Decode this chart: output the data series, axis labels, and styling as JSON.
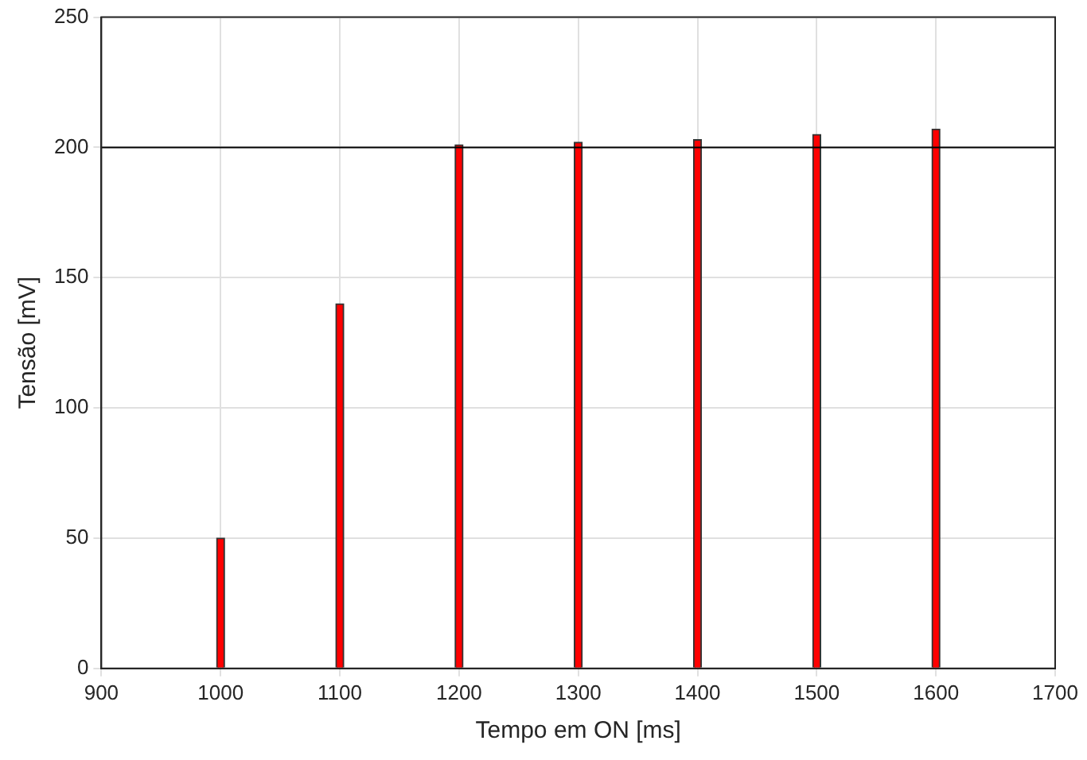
{
  "chart_data": {
    "type": "bar",
    "xlabel": "Tempo em ON [ms]",
    "ylabel": "Tensão [mV]",
    "x": [
      1000,
      1100,
      1200,
      1300,
      1400,
      1500,
      1600
    ],
    "values": [
      50,
      140,
      201,
      202,
      203,
      205,
      207
    ],
    "color": "#ff0000",
    "xlim": [
      900,
      1700
    ],
    "xticks": [
      900,
      1000,
      1100,
      1200,
      1300,
      1400,
      1500,
      1600,
      1700
    ],
    "ylim": [
      0,
      250
    ],
    "yticks": [
      0,
      50,
      100,
      150,
      200,
      250
    ],
    "ref_lines": [
      {
        "axis": "y",
        "value": 200,
        "color": "#000000"
      }
    ],
    "grid": true,
    "legend": false
  }
}
